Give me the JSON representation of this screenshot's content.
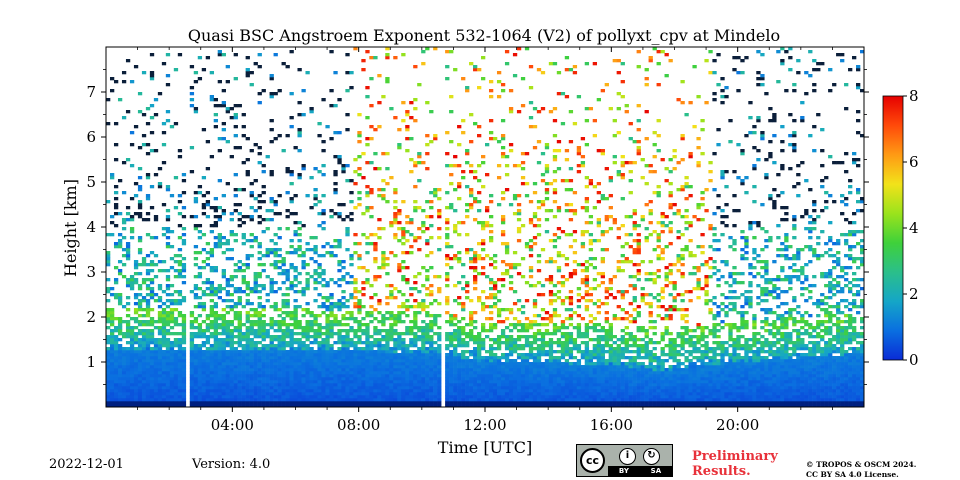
{
  "chart_data": {
    "type": "heatmap",
    "title": "Quasi BSC Angstroem Exponent 532-1064 (V2) of pollyxt_cpv at Mindelo",
    "xlabel": "Time [UTC]",
    "ylabel": "Height [km]",
    "xlim_hours": [
      0,
      24
    ],
    "ylim_km": [
      0,
      8
    ],
    "x_ticks": [
      {
        "hour": 4,
        "label": "04:00"
      },
      {
        "hour": 8,
        "label": "08:00"
      },
      {
        "hour": 12,
        "label": "12:00"
      },
      {
        "hour": 16,
        "label": "16:00"
      },
      {
        "hour": 20,
        "label": "20:00"
      }
    ],
    "y_ticks": [
      {
        "value": 1,
        "label": "1"
      },
      {
        "value": 2,
        "label": "2"
      },
      {
        "value": 3,
        "label": "3"
      },
      {
        "value": 4,
        "label": "4"
      },
      {
        "value": 5,
        "label": "5"
      },
      {
        "value": 6,
        "label": "6"
      },
      {
        "value": 7,
        "label": "7"
      }
    ],
    "colorbar": {
      "range": [
        0,
        8
      ],
      "ticks": [
        {
          "value": 0,
          "label": "0"
        },
        {
          "value": 2,
          "label": "2"
        },
        {
          "value": 4,
          "label": "4"
        },
        {
          "value": 6,
          "label": "6"
        },
        {
          "value": 8,
          "label": "8"
        }
      ],
      "colormap": [
        "#0a2bd6",
        "#0a6fe0",
        "#15a6c7",
        "#2bbf8a",
        "#3fd13a",
        "#9be31c",
        "#f2e21a",
        "#ff9a14",
        "#ff4a0a",
        "#e60000"
      ]
    },
    "data_gaps_hours": [
      [
        2.5,
        2.65
      ],
      [
        10.55,
        10.75
      ]
    ],
    "boundary_layer_top_km": [
      {
        "hour": 0,
        "km": 1.3
      },
      {
        "hour": 4,
        "km": 1.3
      },
      {
        "hour": 8,
        "km": 1.25
      },
      {
        "hour": 10.5,
        "km": 1.2
      },
      {
        "hour": 12,
        "km": 1.0
      },
      {
        "hour": 16,
        "km": 0.95
      },
      {
        "hour": 17.5,
        "km": 0.8
      },
      {
        "hour": 20,
        "km": 1.0
      },
      {
        "hour": 24,
        "km": 1.2
      }
    ],
    "night_noise_hours": [
      [
        0,
        7.8
      ],
      [
        19.2,
        24
      ]
    ]
  },
  "footer": {
    "date": "2022-12-01",
    "version": "Version: 4.0",
    "license_badge": {
      "cc": "cc",
      "by": "BY",
      "sa": "SA"
    },
    "preliminary": [
      "Preliminary",
      "Results."
    ],
    "copyright": [
      "© TROPOS & OSCM 2024.",
      "CC BY SA 4.0 License."
    ]
  }
}
